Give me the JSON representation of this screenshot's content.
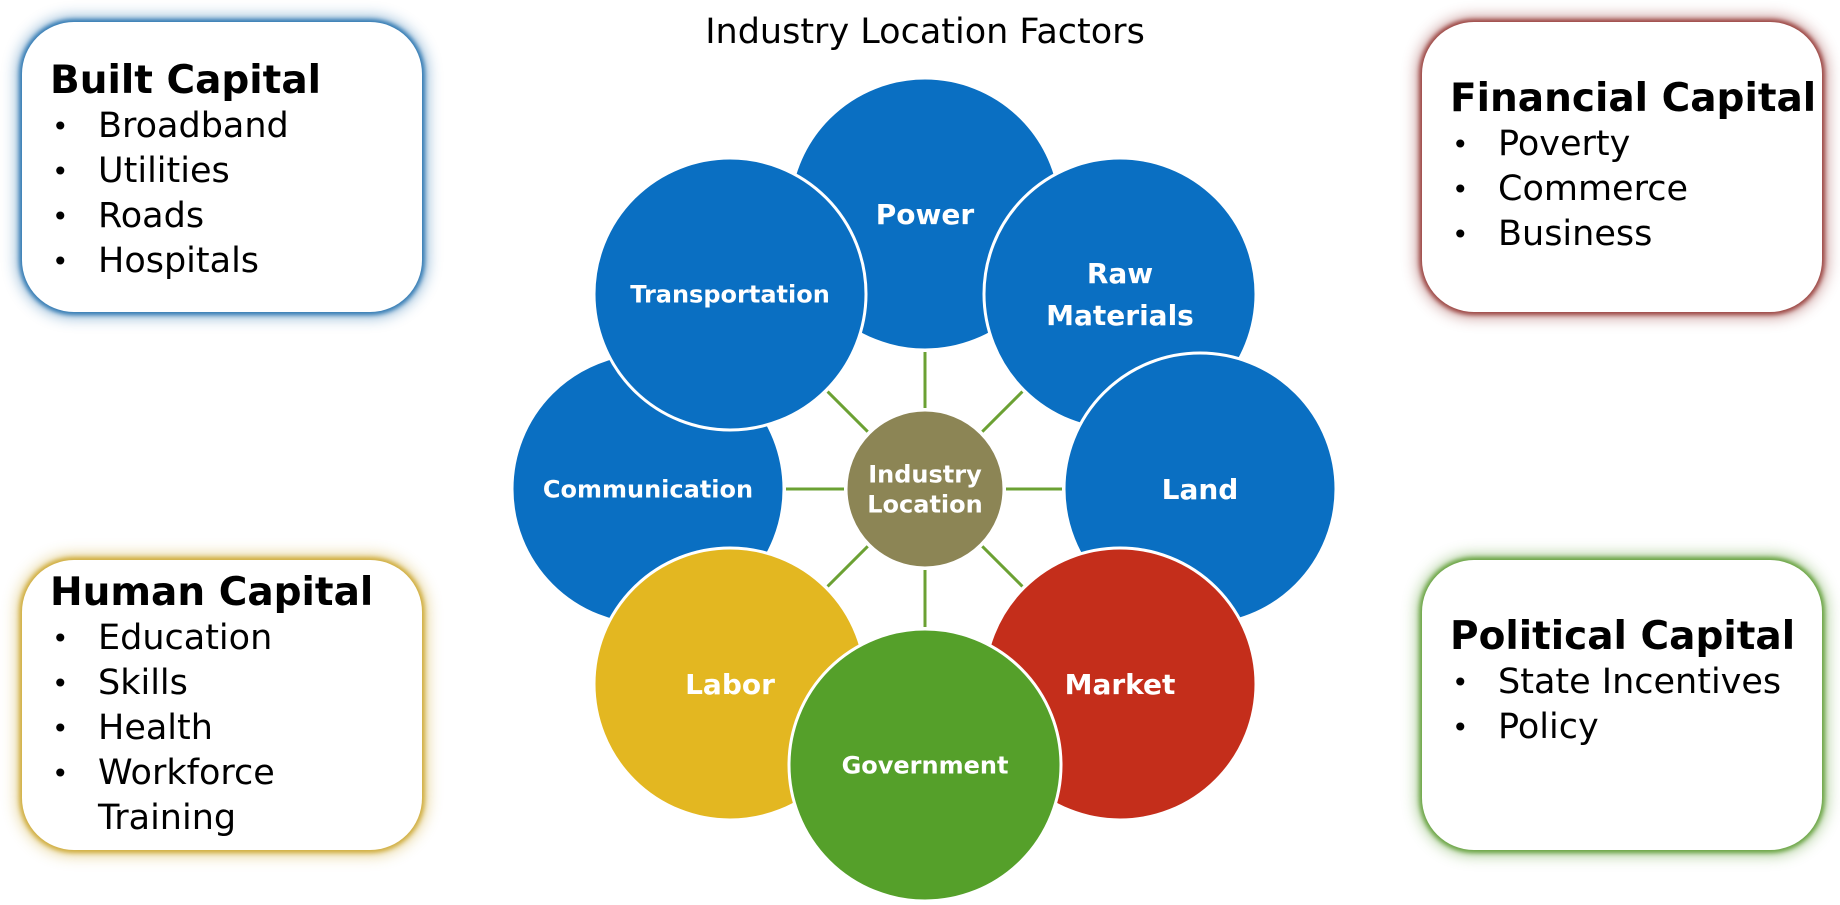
{
  "title": "Industry Location Factors",
  "center": {
    "lines": [
      "Industry",
      "Location"
    ],
    "color": "#8C8555"
  },
  "spoke_color": "#6BA133",
  "nodes": [
    {
      "id": "communication",
      "lines": [
        "Communication"
      ],
      "color": "#0A6FC2"
    },
    {
      "id": "transportation",
      "lines": [
        "Transportation"
      ],
      "color": "#0A6FC2"
    },
    {
      "id": "power",
      "lines": [
        "Power"
      ],
      "color": "#0A6FC2"
    },
    {
      "id": "raw-materials",
      "lines": [
        "Raw",
        "Materials"
      ],
      "color": "#0A6FC2"
    },
    {
      "id": "land",
      "lines": [
        "Land"
      ],
      "color": "#0A6FC2"
    },
    {
      "id": "labor",
      "lines": [
        "Labor"
      ],
      "color": "#E3B721"
    },
    {
      "id": "market",
      "lines": [
        "Market"
      ],
      "color": "#C42E1B"
    },
    {
      "id": "government",
      "lines": [
        "Government"
      ],
      "color": "#55A02A"
    }
  ],
  "boxes": {
    "built": {
      "title": "Built Capital",
      "items": [
        "Broadband",
        "Utilities",
        "Roads",
        "Hospitals"
      ],
      "color": "#1F6DAB"
    },
    "financial": {
      "title": "Financial Capital",
      "items": [
        "Poverty",
        "Commerce",
        "Business"
      ],
      "color": "#923430"
    },
    "human": {
      "title": "Human Capital",
      "items": [
        "Education",
        "Skills",
        "Health",
        "Workforce Training"
      ],
      "color": "#CBA62D"
    },
    "political": {
      "title": "Political Capital",
      "items": [
        "State Incentives",
        "Policy"
      ],
      "color": "#5C9B31"
    }
  }
}
